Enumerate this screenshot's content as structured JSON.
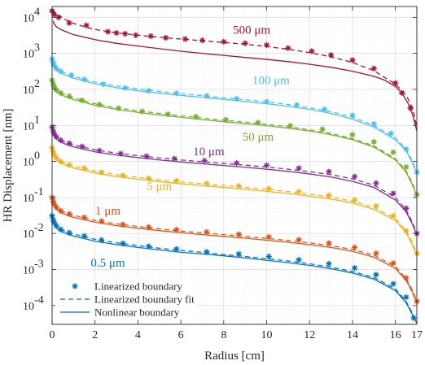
{
  "chart_data": {
    "type": "line",
    "title": "",
    "xlabel": "Radius [cm]",
    "ylabel": "HR Displacement [nm]",
    "xlim": [
      0,
      17
    ],
    "ylim": [
      3e-05,
      20000
    ],
    "y_scale": "log",
    "grid": true,
    "legend_position": "bottom-left",
    "x_ticks": [
      "0",
      "2",
      "4",
      "6",
      "8",
      "10",
      "12",
      "14",
      "16",
      "17"
    ],
    "x_tick_values": [
      0,
      2,
      4,
      6,
      8,
      10,
      12,
      14,
      16,
      17
    ],
    "y_ticks": [
      {
        "base": "10",
        "exp": "-4",
        "value": 0.0001
      },
      {
        "base": "10",
        "exp": "-3",
        "value": 0.001
      },
      {
        "base": "10",
        "exp": "-2",
        "value": 0.01
      },
      {
        "base": "10",
        "exp": "-1",
        "value": 0.1
      },
      {
        "base": "10",
        "exp": "0",
        "value": 1
      },
      {
        "base": "10",
        "exp": "1",
        "value": 10
      },
      {
        "base": "10",
        "exp": "2",
        "value": 100
      },
      {
        "base": "10",
        "exp": "3",
        "value": 1000
      },
      {
        "base": "10",
        "exp": "4",
        "value": 10000
      }
    ],
    "legend": [
      {
        "label": "Linearized boundary",
        "style": "marker"
      },
      {
        "label": "Linearized boundary fit",
        "style": "dashed"
      },
      {
        "label": "Nonlinear boundary",
        "style": "solid"
      }
    ],
    "series": [
      {
        "label": "500 μm",
        "color": "#A2142F",
        "label_x": 9.3,
        "label_y": 3500,
        "linearized_x": [
          0,
          0.1,
          0.2,
          0.3,
          0.4,
          0.6,
          1,
          1.5,
          2,
          3,
          4,
          5,
          6,
          7,
          8,
          9,
          10,
          11,
          12,
          13,
          14,
          15,
          16,
          16.5,
          16.8,
          17
        ],
        "linearized_y": [
          17000,
          14000,
          12500,
          11000,
          10500,
          8800,
          6800,
          5500,
          4600,
          3700,
          3200,
          2800,
          2500,
          2250,
          2000,
          1800,
          1550,
          1300,
          1050,
          800,
          560,
          330,
          140,
          70,
          30,
          9
        ],
        "nonlinear_x": [
          0.05,
          0.1,
          0.2,
          0.4,
          0.7,
          1,
          2,
          3,
          4,
          5,
          6,
          7,
          8,
          9,
          10,
          11,
          12,
          13,
          14,
          15,
          15.5,
          16,
          16.3,
          16.6,
          16.8,
          17
        ],
        "nonlinear_y": [
          8000,
          6500,
          5500,
          4600,
          3900,
          3300,
          2400,
          1900,
          1600,
          1350,
          1150,
          1000,
          880,
          770,
          680,
          590,
          500,
          410,
          320,
          230,
          180,
          120,
          80,
          40,
          20,
          7
        ],
        "marker_x": [
          0,
          0.1,
          0.3,
          0.8,
          1.6,
          2.6,
          3.0,
          3.4,
          3.9,
          4.6,
          5.3,
          6.2,
          7.0,
          8.0,
          9.0,
          10.0,
          11.0,
          12.1,
          13.0,
          14.0,
          15.0,
          16.0,
          16.3,
          16.7
        ],
        "marker_y": [
          15000,
          12000,
          10000,
          7000,
          6000,
          4000,
          3700,
          3500,
          3200,
          3000,
          2700,
          2500,
          2300,
          2100,
          1900,
          1700,
          1400,
          1150,
          900,
          650,
          380,
          150,
          80,
          30
        ]
      },
      {
        "label": "100 μm",
        "color": "#4DBEEE",
        "label_x": 10.2,
        "label_y": 140,
        "linearized_x": [
          0,
          0.05,
          0.1,
          0.2,
          0.4,
          0.7,
          1,
          2,
          3,
          4,
          5,
          6,
          7,
          8,
          9,
          10,
          11,
          12,
          13,
          14,
          15,
          16,
          16.5,
          16.8,
          17
        ],
        "linearized_y": [
          700,
          550,
          460,
          380,
          320,
          270,
          230,
          160,
          125,
          103,
          88,
          76,
          67,
          59,
          52,
          45,
          38,
          31,
          24,
          17,
          10,
          4.5,
          2.2,
          1,
          0.5
        ],
        "nonlinear_x": [
          0,
          0.05,
          0.1,
          0.2,
          0.4,
          0.7,
          1,
          2,
          3,
          4,
          5,
          6,
          7,
          8,
          9,
          10,
          11,
          12,
          13,
          14,
          15,
          16,
          16.5,
          16.8,
          17
        ],
        "nonlinear_y": [
          620,
          490,
          410,
          340,
          285,
          240,
          205,
          143,
          112,
          92,
          78,
          68,
          60,
          53,
          46,
          40,
          34,
          28,
          21.5,
          15,
          9,
          4,
          2,
          0.9,
          0.45
        ],
        "marker_x": [
          0,
          0.05,
          0.1,
          0.2,
          0.4,
          0.9,
          1.5,
          2.4,
          3.4,
          4.5,
          5.8,
          7.2,
          8.6,
          10.0,
          11.4,
          12.7,
          14.0,
          15.0,
          15.8,
          16.5,
          17.0
        ],
        "marker_y": [
          700,
          560,
          460,
          380,
          320,
          250,
          190,
          140,
          110,
          92,
          78,
          66,
          55,
          46,
          37,
          28,
          19,
          11,
          6,
          2.2,
          0.5
        ]
      },
      {
        "label": "50 μm",
        "color": "#77AC30",
        "label_x": 9.6,
        "label_y": 3.8,
        "linearized_x": [
          0,
          0.05,
          0.1,
          0.2,
          0.4,
          0.7,
          1,
          2,
          3,
          4,
          5,
          6,
          7,
          8,
          9,
          10,
          11,
          12,
          13,
          14,
          15,
          16,
          16.5,
          16.8,
          17
        ],
        "linearized_y": [
          180,
          140,
          118,
          97,
          80,
          67,
          58,
          40,
          31,
          25.5,
          21.5,
          18.5,
          16,
          14,
          12.3,
          10.8,
          9.2,
          7.6,
          6,
          4.3,
          2.7,
          1.2,
          0.55,
          0.25,
          0.12
        ],
        "nonlinear_x": [
          0,
          0.05,
          0.1,
          0.2,
          0.4,
          0.7,
          1,
          2,
          3,
          4,
          5,
          6,
          7,
          8,
          9,
          10,
          11,
          12,
          13,
          14,
          15,
          16,
          16.5,
          16.8,
          17
        ],
        "nonlinear_y": [
          160,
          125,
          105,
          86,
          71,
          60,
          52,
          36,
          28,
          23,
          19.5,
          16.8,
          14.5,
          12.7,
          11.2,
          9.8,
          8.4,
          7,
          5.5,
          4,
          2.5,
          1.1,
          0.5,
          0.22,
          0.11
        ],
        "marker_x": [
          0,
          0.05,
          0.1,
          0.2,
          0.4,
          0.8,
          1.4,
          2.2,
          3.1,
          4.2,
          5.4,
          6.7,
          8.1,
          9.6,
          11.1,
          12.6,
          14.0,
          15.0,
          15.9,
          16.5,
          17.0
        ],
        "marker_y": [
          180,
          140,
          118,
          97,
          80,
          65,
          50,
          38,
          30,
          24.5,
          20.5,
          17.5,
          14.5,
          12,
          9.8,
          7.8,
          5.5,
          3.5,
          1.8,
          0.7,
          0.12
        ]
      },
      {
        "label": "10 μm",
        "color": "#7E2F8E",
        "label_x": 7.3,
        "label_y": 1.5,
        "linearized_x": [
          0,
          0.05,
          0.1,
          0.2,
          0.4,
          0.7,
          1,
          2,
          3,
          4,
          5,
          6,
          7,
          8,
          9,
          10,
          11,
          12,
          13,
          14,
          15,
          16,
          16.5,
          16.8,
          17
        ],
        "linearized_y": [
          9,
          7,
          5.8,
          4.8,
          3.9,
          3.3,
          2.9,
          2.1,
          1.7,
          1.45,
          1.25,
          1.1,
          0.98,
          0.88,
          0.79,
          0.7,
          0.61,
          0.52,
          0.43,
          0.33,
          0.22,
          0.1,
          0.045,
          0.02,
          0.01
        ],
        "nonlinear_x": [
          0,
          0.05,
          0.1,
          0.2,
          0.4,
          0.7,
          1,
          2,
          3,
          4,
          5,
          6,
          7,
          8,
          9,
          10,
          11,
          12,
          13,
          14,
          15,
          16,
          16.5,
          16.8,
          17
        ],
        "nonlinear_y": [
          8,
          6.2,
          5.1,
          4.2,
          3.45,
          2.9,
          2.55,
          1.85,
          1.5,
          1.28,
          1.1,
          0.97,
          0.86,
          0.77,
          0.69,
          0.61,
          0.53,
          0.45,
          0.37,
          0.28,
          0.19,
          0.085,
          0.04,
          0.018,
          0.009
        ],
        "marker_x": [
          0,
          0.05,
          0.1,
          0.2,
          0.4,
          0.8,
          1.4,
          2.2,
          3.2,
          4.4,
          5.7,
          7.1,
          8.6,
          10.0,
          11.5,
          12.9,
          14.1,
          15.1,
          15.9,
          16.5,
          17.0
        ],
        "marker_y": [
          9,
          7,
          5.8,
          4.8,
          3.9,
          3.2,
          2.6,
          2.0,
          1.65,
          1.4,
          1.2,
          1.05,
          0.9,
          0.78,
          0.65,
          0.52,
          0.38,
          0.25,
          0.13,
          0.05,
          0.01
        ]
      },
      {
        "label": "5 μm",
        "color": "#EDB120",
        "label_x": 5.0,
        "label_y": 0.16,
        "linearized_x": [
          0,
          0.05,
          0.1,
          0.2,
          0.4,
          0.7,
          1,
          2,
          3,
          4,
          5,
          6,
          7,
          8,
          9,
          10,
          11,
          12,
          13,
          14,
          15,
          16,
          16.5,
          16.8,
          17
        ],
        "linearized_y": [
          2.4,
          1.85,
          1.55,
          1.25,
          1.02,
          0.86,
          0.75,
          0.54,
          0.43,
          0.36,
          0.31,
          0.27,
          0.24,
          0.215,
          0.19,
          0.168,
          0.146,
          0.124,
          0.102,
          0.079,
          0.053,
          0.026,
          0.012,
          0.0055,
          0.0028
        ],
        "nonlinear_x": [
          0,
          0.05,
          0.1,
          0.2,
          0.4,
          0.7,
          1,
          2,
          3,
          4,
          5,
          6,
          7,
          8,
          9,
          10,
          11,
          12,
          13,
          14,
          15,
          16,
          16.5,
          16.8,
          17
        ],
        "nonlinear_y": [
          2.1,
          1.63,
          1.36,
          1.1,
          0.9,
          0.76,
          0.66,
          0.48,
          0.38,
          0.32,
          0.275,
          0.24,
          0.213,
          0.19,
          0.168,
          0.148,
          0.128,
          0.109,
          0.09,
          0.07,
          0.047,
          0.023,
          0.0105,
          0.0048,
          0.0024
        ],
        "marker_x": [
          0,
          0.05,
          0.1,
          0.2,
          0.4,
          0.8,
          1.5,
          2.3,
          3.3,
          4.5,
          5.8,
          7.2,
          8.7,
          10.1,
          11.5,
          12.9,
          14.1,
          15.1,
          15.9,
          16.5,
          17.0
        ],
        "marker_y": [
          2.4,
          1.85,
          1.55,
          1.25,
          1.0,
          0.8,
          0.65,
          0.5,
          0.41,
          0.34,
          0.29,
          0.245,
          0.21,
          0.175,
          0.145,
          0.115,
          0.085,
          0.058,
          0.031,
          0.012,
          0.0028
        ]
      },
      {
        "label": "1 μm",
        "color": "#D95319",
        "label_x": 2.6,
        "label_y": 0.033,
        "linearized_x": [
          0,
          0.05,
          0.1,
          0.2,
          0.4,
          0.7,
          1,
          2,
          3,
          4,
          5,
          6,
          7,
          8,
          9,
          10,
          11,
          12,
          13,
          14,
          15,
          16,
          16.5,
          16.8,
          17
        ],
        "linearized_y": [
          0.1,
          0.078,
          0.065,
          0.053,
          0.043,
          0.036,
          0.032,
          0.023,
          0.0185,
          0.0156,
          0.0134,
          0.0117,
          0.0104,
          0.0093,
          0.0083,
          0.0073,
          0.0064,
          0.0055,
          0.0046,
          0.0036,
          0.0025,
          0.0012,
          0.00056,
          0.00026,
          0.00013
        ],
        "nonlinear_x": [
          0,
          0.05,
          0.1,
          0.2,
          0.4,
          0.7,
          1,
          2,
          3,
          4,
          5,
          6,
          7,
          8,
          9,
          10,
          11,
          12,
          13,
          14,
          15,
          16,
          16.5,
          16.8,
          17
        ],
        "nonlinear_y": [
          0.088,
          0.069,
          0.058,
          0.047,
          0.038,
          0.032,
          0.028,
          0.0205,
          0.0165,
          0.0139,
          0.012,
          0.0105,
          0.0093,
          0.0083,
          0.0074,
          0.0065,
          0.0057,
          0.0049,
          0.0041,
          0.0032,
          0.0022,
          0.00107,
          0.0005,
          0.00023,
          0.00012
        ],
        "marker_x": [
          0,
          0.05,
          0.1,
          0.2,
          0.4,
          0.8,
          1.5,
          2.3,
          3.3,
          4.5,
          5.8,
          7.2,
          8.7,
          10.1,
          11.5,
          12.9,
          14.1,
          15.1,
          15.9,
          16.5,
          17.0
        ],
        "marker_y": [
          0.1,
          0.078,
          0.065,
          0.053,
          0.043,
          0.035,
          0.028,
          0.022,
          0.0178,
          0.015,
          0.0128,
          0.011,
          0.0095,
          0.008,
          0.0067,
          0.0054,
          0.0041,
          0.0028,
          0.0015,
          0.00058,
          0.00013
        ]
      },
      {
        "label": "0.5 μm",
        "color": "#0072BD",
        "label_x": 2.6,
        "label_y": 0.0012,
        "linearized_x": [
          0,
          0.05,
          0.1,
          0.2,
          0.4,
          0.7,
          1,
          2,
          3,
          4,
          5,
          6,
          7,
          8,
          9,
          10,
          11,
          12,
          13,
          14,
          15,
          16,
          16.5,
          16.8,
          17
        ],
        "linearized_y": [
          0.031,
          0.024,
          0.02,
          0.0162,
          0.0131,
          0.011,
          0.0096,
          0.0069,
          0.0055,
          0.0046,
          0.0039,
          0.0034,
          0.003,
          0.0026,
          0.0023,
          0.002,
          0.00172,
          0.00144,
          0.00116,
          0.00088,
          0.0006,
          0.00029,
          0.00013,
          6e-05,
          3.5e-05
        ],
        "nonlinear_x": [
          0,
          0.05,
          0.1,
          0.2,
          0.4,
          0.7,
          1,
          2,
          3,
          4,
          5,
          6,
          7,
          8,
          9,
          10,
          11,
          12,
          13,
          14,
          15,
          16,
          16.5,
          16.8,
          17
        ],
        "nonlinear_y": [
          0.027,
          0.021,
          0.0175,
          0.0142,
          0.0115,
          0.0097,
          0.0085,
          0.0061,
          0.0049,
          0.0041,
          0.0035,
          0.003,
          0.0027,
          0.0024,
          0.0021,
          0.0018,
          0.00155,
          0.0013,
          0.00105,
          0.0008,
          0.00054,
          0.00026,
          0.00012,
          5.5e-05,
          3.2e-05
        ],
        "marker_x": [
          0,
          0.05,
          0.1,
          0.2,
          0.4,
          0.8,
          1.5,
          2.3,
          3.3,
          4.5,
          5.8,
          7.2,
          8.7,
          10.1,
          11.5,
          12.9,
          14.1,
          15.1,
          15.9,
          16.5,
          16.85
        ],
        "marker_y": [
          0.031,
          0.024,
          0.02,
          0.0162,
          0.013,
          0.0105,
          0.0085,
          0.0066,
          0.0053,
          0.0044,
          0.0037,
          0.0031,
          0.0027,
          0.0023,
          0.00185,
          0.00145,
          0.0011,
          0.00072,
          0.0004,
          0.00017,
          4.5e-05
        ]
      }
    ]
  }
}
